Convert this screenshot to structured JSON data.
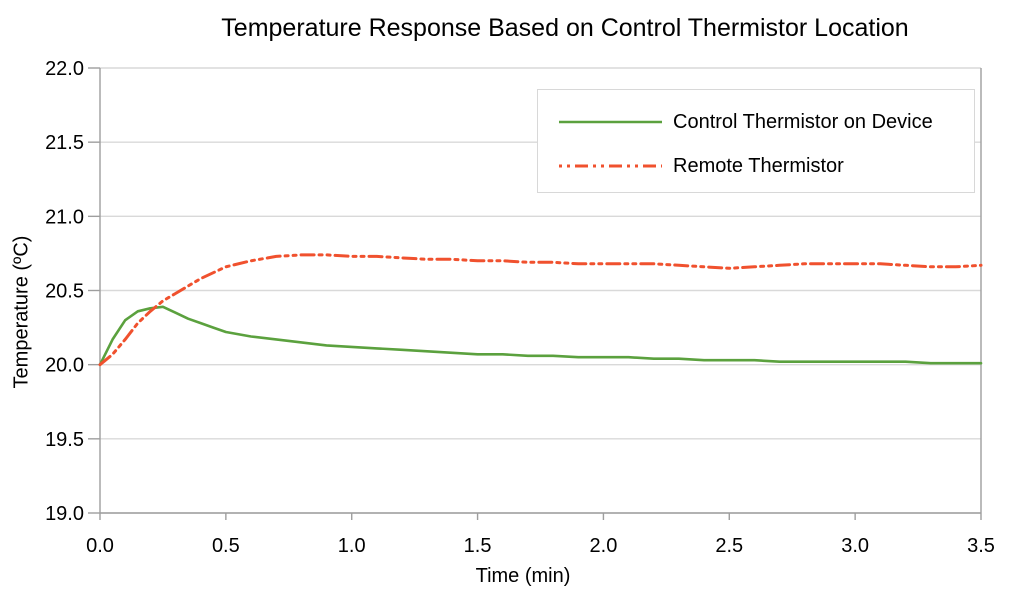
{
  "chart_data": {
    "type": "line",
    "title": "Temperature Response Based on Control Thermistor Location",
    "xlabel": "Time (min)",
    "ylabel": "Temperature (ºC)",
    "xlim": [
      0,
      3.5
    ],
    "ylim": [
      19.0,
      22.0
    ],
    "x_ticks": [
      "0.0",
      "0.5",
      "1.0",
      "1.5",
      "2.0",
      "2.5",
      "3.0",
      "3.5"
    ],
    "x_tick_values": [
      0,
      0.5,
      1.0,
      1.5,
      2.0,
      2.5,
      3.0,
      3.5
    ],
    "y_ticks": [
      "19.0",
      "19.5",
      "20.0",
      "20.5",
      "21.0",
      "21.5",
      "22.0"
    ],
    "y_tick_values": [
      19.0,
      19.5,
      20.0,
      20.5,
      21.0,
      21.5,
      22.0
    ],
    "grid": "horizontal-only",
    "legend_position": "top-right-inside",
    "colors": {
      "control": "#5ba13e",
      "remote": "#f0512e",
      "grid": "#d9d9d9",
      "axis": "#9e9e9e",
      "text": "#000000",
      "legend_border": "#d8d8d8",
      "background": "#ffffff"
    },
    "x": [
      0,
      0.05,
      0.1,
      0.15,
      0.2,
      0.25,
      0.3,
      0.35,
      0.4,
      0.45,
      0.5,
      0.6,
      0.7,
      0.8,
      0.9,
      1.0,
      1.1,
      1.2,
      1.3,
      1.4,
      1.5,
      1.6,
      1.7,
      1.8,
      1.9,
      2.0,
      2.1,
      2.2,
      2.3,
      2.4,
      2.5,
      2.6,
      2.7,
      2.8,
      2.9,
      3.0,
      3.1,
      3.2,
      3.3,
      3.4,
      3.5
    ],
    "series": [
      {
        "name": "Control Thermistor on Device",
        "color_key": "control",
        "line_style": "solid",
        "values": [
          20.0,
          20.17,
          20.3,
          20.36,
          20.38,
          20.39,
          20.35,
          20.31,
          20.28,
          20.25,
          20.22,
          20.19,
          20.17,
          20.15,
          20.13,
          20.12,
          20.11,
          20.1,
          20.09,
          20.08,
          20.07,
          20.07,
          20.06,
          20.06,
          20.05,
          20.05,
          20.05,
          20.04,
          20.04,
          20.03,
          20.03,
          20.03,
          20.02,
          20.02,
          20.02,
          20.02,
          20.02,
          20.02,
          20.01,
          20.01,
          20.01
        ]
      },
      {
        "name": "Remote Thermistor",
        "color_key": "remote",
        "line_style": "dash-dot-dot",
        "values": [
          20.0,
          20.07,
          20.17,
          20.28,
          20.36,
          20.43,
          20.48,
          20.53,
          20.58,
          20.62,
          20.66,
          20.7,
          20.73,
          20.74,
          20.74,
          20.73,
          20.73,
          20.72,
          20.71,
          20.71,
          20.7,
          20.7,
          20.69,
          20.69,
          20.68,
          20.68,
          20.68,
          20.68,
          20.67,
          20.66,
          20.65,
          20.66,
          20.67,
          20.68,
          20.68,
          20.68,
          20.68,
          20.67,
          20.66,
          20.66,
          20.67
        ]
      }
    ]
  }
}
